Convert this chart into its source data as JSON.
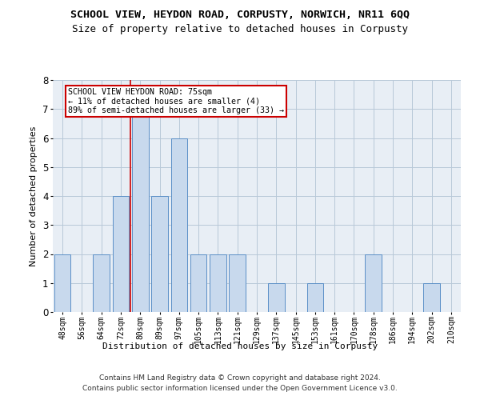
{
  "title": "SCHOOL VIEW, HEYDON ROAD, CORPUSTY, NORWICH, NR11 6QQ",
  "subtitle": "Size of property relative to detached houses in Corpusty",
  "xlabel": "Distribution of detached houses by size in Corpusty",
  "ylabel": "Number of detached properties",
  "categories": [
    "48sqm",
    "56sqm",
    "64sqm",
    "72sqm",
    "80sqm",
    "89sqm",
    "97sqm",
    "105sqm",
    "113sqm",
    "121sqm",
    "129sqm",
    "137sqm",
    "145sqm",
    "153sqm",
    "161sqm",
    "170sqm",
    "178sqm",
    "186sqm",
    "194sqm",
    "202sqm",
    "210sqm"
  ],
  "values": [
    2,
    0,
    2,
    4,
    7,
    4,
    6,
    2,
    2,
    2,
    0,
    1,
    0,
    1,
    0,
    0,
    2,
    0,
    0,
    1,
    0
  ],
  "bar_color": "#c8d9ed",
  "bar_edge_color": "#5b8fc7",
  "property_label": "SCHOOL VIEW HEYDON ROAD: 75sqm",
  "annotation_line1": "← 11% of detached houses are smaller (4)",
  "annotation_line2": "89% of semi-detached houses are larger (33) →",
  "annotation_box_color": "#ffffff",
  "annotation_box_edge": "#cc0000",
  "red_line_index": 3.5,
  "ylim": [
    0,
    8
  ],
  "yticks": [
    0,
    1,
    2,
    3,
    4,
    5,
    6,
    7,
    8
  ],
  "footer_line1": "Contains HM Land Registry data © Crown copyright and database right 2024.",
  "footer_line2": "Contains public sector information licensed under the Open Government Licence v3.0.",
  "bg_color": "#ffffff",
  "plot_bg_color": "#e8eef5",
  "grid_color": "#b8c8d8",
  "title_fontsize": 9.5,
  "subtitle_fontsize": 9,
  "axis_fontsize": 8,
  "tick_fontsize": 7,
  "footer_fontsize": 6.5,
  "bar_width": 0.85
}
